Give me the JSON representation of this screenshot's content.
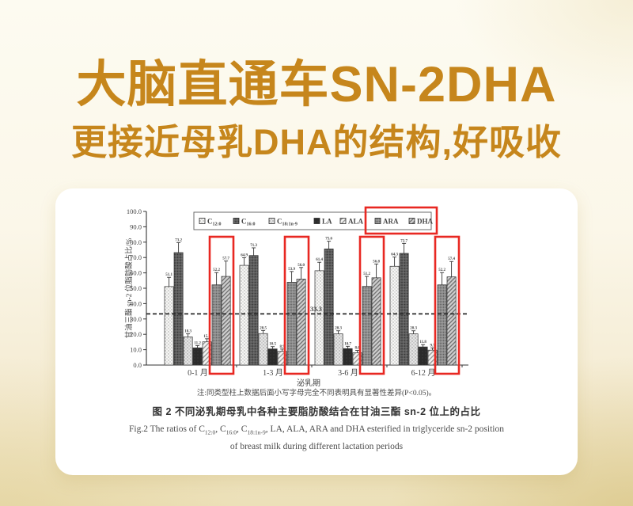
{
  "header": {
    "title_line1": "大脑直通车SN-2DHA",
    "title_line2": "更接近母乳DHA的结构,好吸收",
    "accent_color": "#C6861C"
  },
  "figure": {
    "note": "注:同类型柱上数据后面小写字母完全不同表明具有显著性差异(P<0.05)。",
    "caption_zh": "图 2  不同泌乳期母乳中各种主要脂肪酸结合在甘油三酯 sn-2 位上的占比",
    "caption_en_line1": "Fig.2  The ratios of C12:0, C16:0, C18:1n-9, LA, ALA, ARA and DHA esterified in triglyceride sn-2 position",
    "caption_en_line2": "of breast milk during different lactation periods"
  },
  "chart_data": {
    "type": "bar",
    "title": "",
    "ylabel": "甘油三酯 sn-2 位脂肪酸占比/%",
    "xlabel": "泌乳期",
    "ylim": [
      0,
      100
    ],
    "ytick_step": 10,
    "grid": false,
    "legend_position": "top",
    "categories": [
      "0-1 月",
      "1-3 月",
      "3-6 月",
      "6-12 月"
    ],
    "series": [
      {
        "name": "C12:0",
        "pattern": "dots-light",
        "values": [
          51.1,
          64.9,
          61.4,
          64.3
        ],
        "errors": [
          6.0,
          5.0,
          5.5,
          6.0
        ]
      },
      {
        "name": "C16:0",
        "pattern": "dots-dark",
        "values": [
          73.2,
          71.3,
          75.6,
          72.7
        ],
        "errors": [
          6.5,
          5.0,
          5.0,
          6.5
        ]
      },
      {
        "name": "C18:1n-9",
        "pattern": "dots-gray",
        "values": [
          18.3,
          20.5,
          20.3,
          20.3
        ],
        "errors": [
          2.0,
          2.0,
          2.0,
          2.0
        ]
      },
      {
        "name": "LA",
        "pattern": "solid-black",
        "values": [
          11.2,
          10.5,
          10.7,
          11.8
        ],
        "errors": [
          1.5,
          1.5,
          1.5,
          1.5
        ]
      },
      {
        "name": "ALA",
        "pattern": "hatch-light",
        "values": [
          15.1,
          8.9,
          8.0,
          9.7
        ],
        "errors": [
          2.0,
          1.5,
          1.5,
          1.5
        ]
      },
      {
        "name": "ARA",
        "pattern": "dots-medium",
        "values": [
          52.2,
          53.9,
          51.2,
          52.2
        ],
        "errors": [
          8.0,
          7.0,
          6.5,
          8.0
        ]
      },
      {
        "name": "DHA",
        "pattern": "hatch-medium",
        "values": [
          57.7,
          56.0,
          56.8,
          57.4
        ],
        "errors": [
          10.0,
          7.5,
          9.0,
          10.0
        ]
      }
    ],
    "bar_value_labels": true,
    "reference_line": {
      "value": 33.3,
      "label": "33.3"
    },
    "highlights": {
      "color": "#E8201A",
      "series": [
        "ARA",
        "DHA"
      ]
    }
  }
}
